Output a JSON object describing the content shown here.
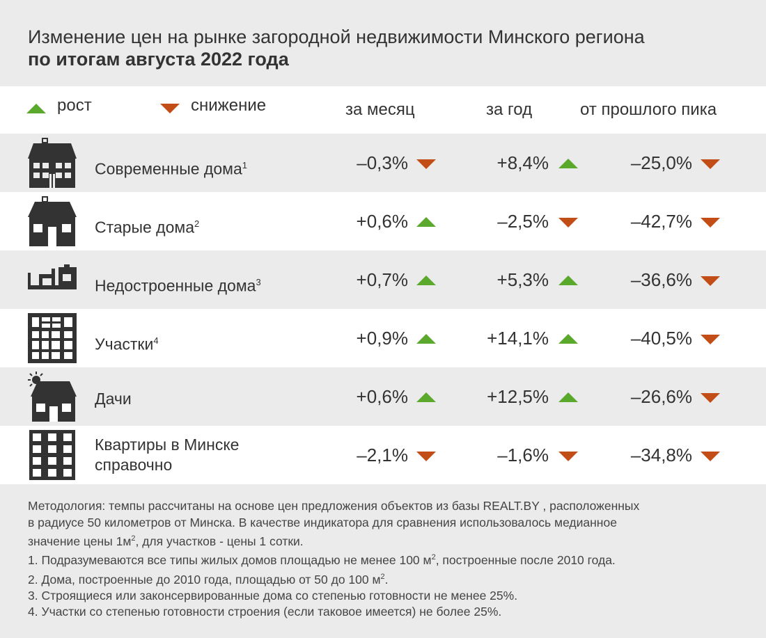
{
  "title": {
    "line1": "Изменение цен на рынке загородной недвижимости Минского региона",
    "line2": "по итогам августа 2022 года"
  },
  "legend": {
    "up": "рост",
    "down": "снижение"
  },
  "columns": {
    "month": "за месяц",
    "year": "за год",
    "peak": "от прошлого пика"
  },
  "colors": {
    "up": "#5aa82c",
    "down": "#c34d16",
    "icon": "#333333"
  },
  "chart_data": {
    "type": "table",
    "columns": [
      "за месяц",
      "за год",
      "от прошлого пика"
    ],
    "rows": [
      {
        "icon": "modern-house-icon",
        "label": "Современные дома",
        "note": "1",
        "month": "–0,3%",
        "month_dir": "down",
        "year": "+8,4%",
        "year_dir": "up",
        "peak": "–25,0%",
        "peak_dir": "down"
      },
      {
        "icon": "old-house-icon",
        "label": "Старые дома",
        "note": "2",
        "month": "+0,6%",
        "month_dir": "up",
        "year": "–2,5%",
        "year_dir": "down",
        "peak": "–42,7%",
        "peak_dir": "down"
      },
      {
        "icon": "unfinished-house-icon",
        "label": "Недостроенные дома",
        "note": "3",
        "month": "+0,7%",
        "month_dir": "up",
        "year": "+5,3%",
        "year_dir": "up",
        "peak": "–36,6%",
        "peak_dir": "down"
      },
      {
        "icon": "land-plot-icon",
        "label": "Участки",
        "note": "4",
        "month": "+0,9%",
        "month_dir": "up",
        "year": "+14,1%",
        "year_dir": "up",
        "peak": "–40,5%",
        "peak_dir": "down"
      },
      {
        "icon": "dacha-icon",
        "label": "Дачи",
        "note": "",
        "month": "+0,6%",
        "month_dir": "up",
        "year": "+12,5%",
        "year_dir": "up",
        "peak": "–26,6%",
        "peak_dir": "down"
      },
      {
        "icon": "apartment-building-icon",
        "label": "Квартиры в Минске",
        "label2": "справочно",
        "note": "",
        "month": "–2,1%",
        "month_dir": "down",
        "year": "–1,6%",
        "year_dir": "down",
        "peak": "–34,8%",
        "peak_dir": "down"
      }
    ]
  },
  "notes": {
    "methodology_1": "Методология: темпы рассчитаны на основе цен предложения объектов из базы REALT.BY , расположенных",
    "methodology_2": "в радиусе 50 километров от Минска. В качестве индикатора для сравнения использовалось медианное",
    "methodology_3a": "значение цены 1м",
    "methodology_3b": ", для участков  - цены 1 сотки.",
    "note1a": "1. Подразумеваются все типы жилых домов площадью не менее 100 м",
    "note1b": ", построенные после 2010 года.",
    "note2a": "2. Дома, построенные до 2010 года, площадью от 50 до 100 м",
    "note2b": ".",
    "note3": "3. Строящиеся или законсервированные дома со степенью готовности не менее 25%.",
    "note4": "4. Участки со степенью готовности строения (если таковое имеется) не более 25%.",
    "sup2": "2"
  }
}
